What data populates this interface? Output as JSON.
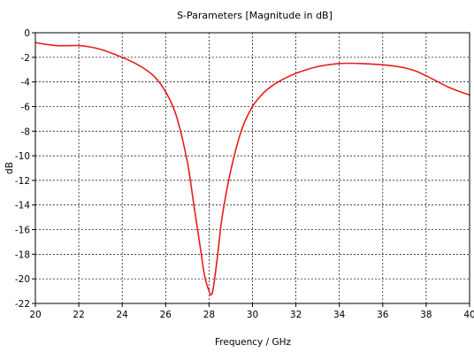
{
  "chart_data": {
    "type": "line",
    "title": "S-Parameters [Magnitude in dB]",
    "xlabel": "Frequency / GHz",
    "ylabel": "dB",
    "xlim": [
      20,
      40
    ],
    "ylim": [
      -22,
      0
    ],
    "xticks": [
      20,
      22,
      24,
      26,
      28,
      30,
      32,
      34,
      36,
      38,
      40
    ],
    "yticks": [
      0,
      -2,
      -4,
      -6,
      -8,
      -10,
      -12,
      -14,
      -16,
      -18,
      -20,
      -22
    ],
    "grid": true,
    "series_color": "#e81c1c",
    "series": [
      {
        "x": [
          20.0,
          20.5,
          21.0,
          21.5,
          22.0,
          22.5,
          23.0,
          23.5,
          24.0,
          24.5,
          25.0,
          25.5,
          26.0,
          26.5,
          27.0,
          27.3,
          27.6,
          27.8,
          28.0,
          28.1,
          28.2,
          28.4,
          28.6,
          29.0,
          29.5,
          30.0,
          30.5,
          31.0,
          31.5,
          32.0,
          32.5,
          33.0,
          33.5,
          34.0,
          34.5,
          35.0,
          35.5,
          36.0,
          36.5,
          37.0,
          37.5,
          38.0,
          38.5,
          39.0,
          39.5,
          40.0
        ],
        "y": [
          -0.8,
          -0.95,
          -1.05,
          -1.05,
          -1.05,
          -1.15,
          -1.35,
          -1.65,
          -2.0,
          -2.4,
          -2.9,
          -3.6,
          -4.8,
          -6.8,
          -10.5,
          -14.0,
          -17.5,
          -19.8,
          -21.0,
          -21.3,
          -20.7,
          -18.0,
          -15.0,
          -11.2,
          -7.9,
          -6.0,
          -4.9,
          -4.2,
          -3.7,
          -3.3,
          -3.0,
          -2.75,
          -2.6,
          -2.5,
          -2.48,
          -2.5,
          -2.55,
          -2.6,
          -2.7,
          -2.85,
          -3.1,
          -3.5,
          -3.95,
          -4.4,
          -4.75,
          -5.05
        ]
      }
    ]
  }
}
